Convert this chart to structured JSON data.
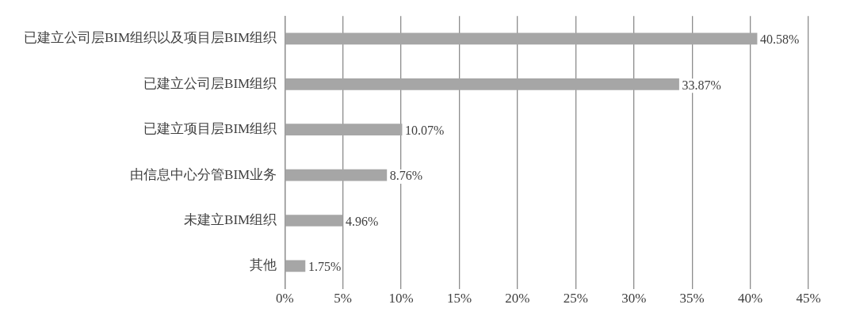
{
  "chart_data": {
    "type": "bar",
    "orientation": "horizontal",
    "categories": [
      "已建立公司层BIM组织以及项目层BIM组织",
      "已建立公司层BIM组织",
      "已建立项目层BIM组织",
      "由信息中心分管BIM业务",
      "未建立BIM组织",
      "其他"
    ],
    "values": [
      40.58,
      33.87,
      10.07,
      8.76,
      4.96,
      1.75
    ],
    "value_labels": [
      "40.58%",
      "33.87%",
      "10.07%",
      "8.76%",
      "4.96%",
      "1.75%"
    ],
    "color": "#a6a6a6",
    "xlim": [
      0,
      45
    ],
    "xticks": [
      {
        "value": 0,
        "label": "0%"
      },
      {
        "value": 5,
        "label": "5%"
      },
      {
        "value": 10,
        "label": "10%"
      },
      {
        "value": 15,
        "label": "15%"
      },
      {
        "value": 20,
        "label": "20%"
      },
      {
        "value": 25,
        "label": "25%"
      },
      {
        "value": 30,
        "label": "30%"
      },
      {
        "value": 35,
        "label": "35%"
      },
      {
        "value": 40,
        "label": "40%"
      },
      {
        "value": 45,
        "label": "45%"
      }
    ],
    "grid": "x",
    "legend": false
  }
}
